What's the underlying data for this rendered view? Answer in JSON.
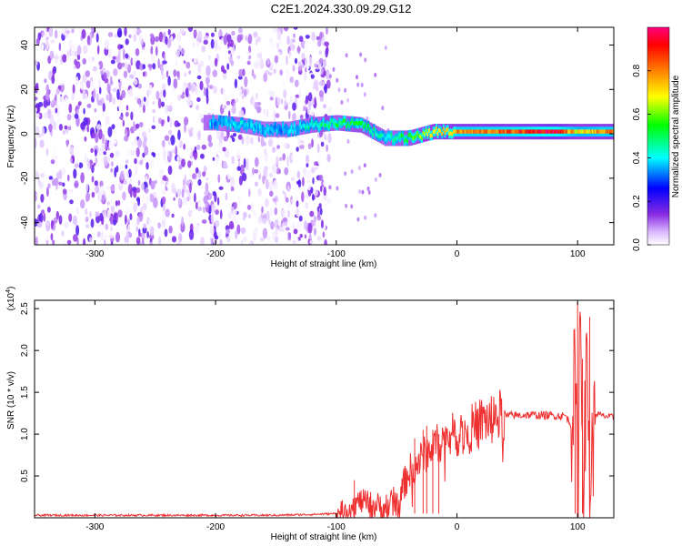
{
  "figure_title": "C2E1.2024.330.09.29.G12",
  "chart_data": [
    {
      "type": "heatmap",
      "xlabel": "Height of straight line (km)",
      "ylabel": "Frequency (Hz)",
      "xlim": [
        -350,
        130
      ],
      "ylim": [
        -50,
        48
      ],
      "x_ticks": [
        -300,
        -200,
        -100,
        0,
        100
      ],
      "x_tick_labels": [
        "-300",
        "-200",
        "-100",
        "0",
        "100"
      ],
      "y_ticks": [
        -40,
        -20,
        0,
        20,
        40
      ],
      "y_tick_labels": [
        "-40",
        "-20",
        "0",
        "20",
        "40"
      ],
      "colorbar": {
        "label": "Normalized spectral amplitude",
        "range": [
          0,
          1
        ],
        "ticks": [
          0,
          0.2,
          0.4,
          0.6,
          0.8
        ],
        "tick_labels": [
          "0.0",
          "0.2",
          "0.4",
          "0.6",
          "0.8"
        ],
        "colormap": [
          "#ffffff",
          "#8a2be2",
          "#0000ff",
          "#00ffff",
          "#00ff00",
          "#ffff00",
          "#ff8000",
          "#ff0000",
          "#ff0080"
        ]
      },
      "ridge": {
        "x": [
          -200,
          -180,
          -160,
          -140,
          -120,
          -100,
          -80,
          -60,
          -40,
          -20,
          0,
          40,
          80,
          100,
          120,
          130
        ],
        "freq": [
          5,
          4,
          2,
          2,
          4,
          5,
          4,
          -2,
          -2,
          1,
          1,
          1,
          1,
          1,
          1,
          1
        ],
        "amplitude": [
          0.3,
          0.35,
          0.3,
          0.3,
          0.4,
          0.45,
          0.5,
          0.35,
          0.5,
          0.65,
          0.7,
          0.75,
          0.9,
          0.6,
          0.7,
          0.7
        ]
      },
      "noise_region_x": [
        -350,
        -105
      ],
      "grid": false
    },
    {
      "type": "line",
      "xlabel": "Height of straight line (km)",
      "ylabel": "SNR (10 * v/v)",
      "exponent_label": "(x10",
      "exponent_value": "4",
      "exponent_close": ")",
      "xlim": [
        -350,
        130
      ],
      "ylim": [
        0,
        2.6
      ],
      "x_ticks": [
        -300,
        -200,
        -100,
        0,
        100
      ],
      "x_tick_labels": [
        "-300",
        "-200",
        "-100",
        "0",
        "100"
      ],
      "y_ticks": [
        0.5,
        1.0,
        1.5,
        2.0,
        2.5
      ],
      "y_tick_labels": [
        "0.5",
        "1.0",
        "1.5",
        "2.0",
        "2.5"
      ],
      "series": [
        {
          "color": "#ee3030",
          "x": [
            -350,
            -300,
            -250,
            -200,
            -150,
            -120,
            -100,
            -90,
            -80,
            -70,
            -60,
            -50,
            -45,
            -40,
            -35,
            -30,
            -25,
            -20,
            -15,
            -10,
            -5,
            0,
            10,
            20,
            30,
            40,
            60,
            80,
            90,
            95,
            98,
            100,
            102,
            105,
            108,
            110,
            115,
            120,
            130
          ],
          "y": [
            0.03,
            0.03,
            0.03,
            0.03,
            0.03,
            0.04,
            0.05,
            0.12,
            0.2,
            0.15,
            0.12,
            0.2,
            0.35,
            0.55,
            0.6,
            0.7,
            0.78,
            0.85,
            0.9,
            0.95,
            0.98,
            1.0,
            1.05,
            1.15,
            1.2,
            1.22,
            1.23,
            1.22,
            1.22,
            1.1,
            1.8,
            0.1,
            2.5,
            0.5,
            2.0,
            0.4,
            1.25,
            1.22,
            1.2
          ],
          "spikes": [
            {
              "x": 100,
              "y": 2.58
            },
            {
              "x": 98,
              "y": 1.6
            },
            {
              "x": 104,
              "y": 1.9
            },
            {
              "x": 110,
              "y": 2.4
            },
            {
              "x": -85,
              "y": 0.45
            },
            {
              "x": -35,
              "y": 0.95
            },
            {
              "x": -28,
              "y": 1.05
            },
            {
              "x": -25,
              "y": 1.1
            },
            {
              "x": -20,
              "y": 1.05
            },
            {
              "x": -15,
              "y": 1.0
            }
          ]
        }
      ],
      "grid": false
    }
  ]
}
